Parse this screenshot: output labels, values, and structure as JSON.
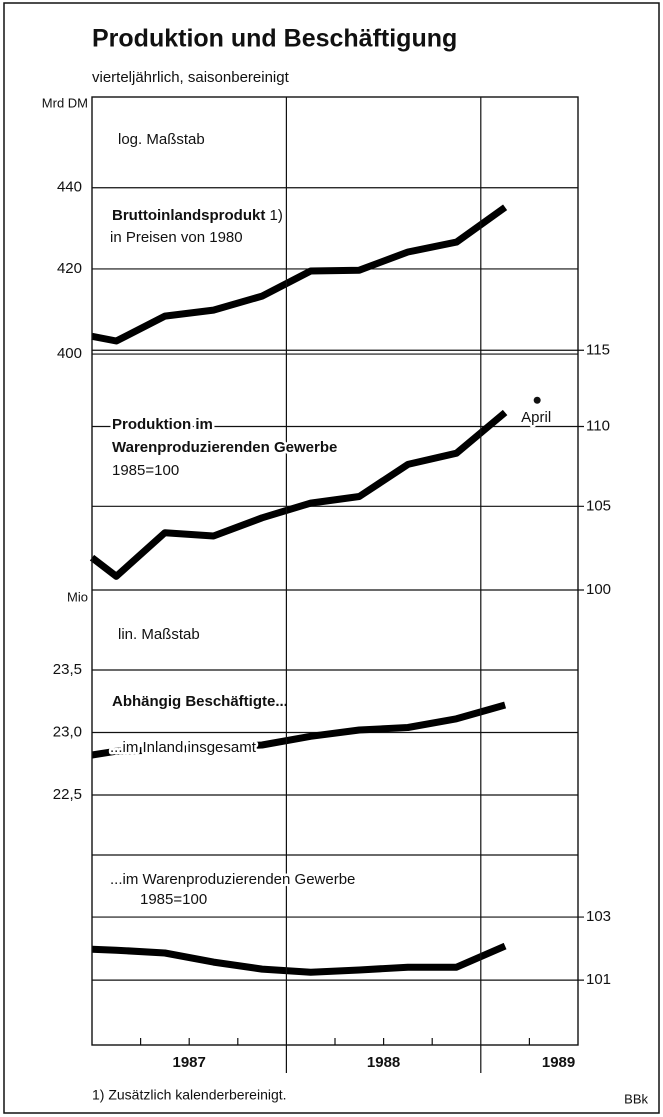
{
  "title": "Produktion und Beschäftigung",
  "subtitle": "vierteljährlich, saisonbereinigt",
  "footnote": "1) Zusätzlich kalenderbereinigt.",
  "source": "BBk",
  "chart_data": [
    {
      "type": "line",
      "log_scale": true,
      "y_label": "Mrd DM",
      "scale_note": "log. Maßstab",
      "xlim": [
        1987,
        1989.5
      ],
      "ylim": [
        349.4,
        463.5
      ],
      "yticks": [
        400,
        420,
        440
      ],
      "y2lim": [
        100,
        133.3
      ],
      "y2ticks": [
        100,
        105,
        110,
        115
      ],
      "series": [
        {
          "name": "Bruttoinlandsprodukt",
          "note": "1)",
          "subtitle": "in Preisen von 1980",
          "color": "#000000",
          "x": [
            1987.0,
            1987.125,
            1987.375,
            1987.625,
            1987.875,
            1988.125,
            1988.375,
            1988.625,
            1988.875,
            1989.125
          ],
          "values": [
            404.1,
            403.0,
            408.8,
            410.2,
            413.5,
            419.5,
            419.7,
            424.1,
            426.5,
            435.1
          ]
        },
        {
          "name": [
            "Produktion im",
            "Warenproduzierenden Gewerbe"
          ],
          "subtitle": "1985=100",
          "color": "#000000",
          "axis": "y2",
          "x": [
            1987.0,
            1987.125,
            1987.375,
            1987.625,
            1987.875,
            1988.125,
            1988.375,
            1988.625,
            1988.875,
            1989.125
          ],
          "values": [
            101.9,
            100.8,
            103.4,
            103.2,
            104.3,
            105.2,
            105.6,
            107.6,
            108.3,
            110.9
          ]
        }
      ],
      "annotation": {
        "text": "April",
        "x": 1989.29,
        "value": 111.7,
        "axis": "y2"
      }
    },
    {
      "type": "line",
      "log_scale": false,
      "y_label": "Mio",
      "scale_note": "lin. Maßstab",
      "heading": "Abhängig Beschäftigte...",
      "xlim": [
        1987,
        1989.5
      ],
      "xticks": [
        {
          "value": 1987.5,
          "label": "1987"
        },
        {
          "value": 1988.5,
          "label": "1988"
        },
        {
          "value": 1989.4,
          "label": "1989"
        }
      ],
      "xgrid": [
        1988,
        1989
      ],
      "xminorticks": [
        1987.25,
        1987.5,
        1987.75,
        1988.25,
        1988.5,
        1988.75,
        1989.25
      ],
      "ylim": [
        20.5,
        24.14
      ],
      "yticks": [
        {
          "value": 22.5,
          "label": "22,5"
        },
        {
          "value": 23.0,
          "label": "23,0"
        },
        {
          "value": 23.5,
          "label": "23,5"
        }
      ],
      "y2lim": [
        98.94,
        113.38
      ],
      "y2ticks": [
        101,
        103
      ],
      "series": [
        {
          "name": "...im Inland insgesamt",
          "color": "#000000",
          "x": [
            1987.0,
            1987.125,
            1987.375,
            1987.625,
            1987.875,
            1988.125,
            1988.375,
            1988.625,
            1988.875,
            1989.125
          ],
          "values": [
            22.82,
            22.85,
            22.86,
            22.88,
            22.9,
            22.97,
            23.02,
            23.04,
            23.11,
            23.22
          ]
        },
        {
          "name": "...im Warenproduzierenden Gewerbe",
          "subtitle": "1985=100",
          "color": "#000000",
          "axis": "y2",
          "x": [
            1987.0,
            1987.125,
            1987.375,
            1987.625,
            1987.875,
            1988.125,
            1988.375,
            1988.625,
            1988.875,
            1989.125
          ],
          "values": [
            101.98,
            101.95,
            101.86,
            101.57,
            101.35,
            101.25,
            101.32,
            101.41,
            101.41,
            102.08
          ]
        }
      ]
    }
  ]
}
